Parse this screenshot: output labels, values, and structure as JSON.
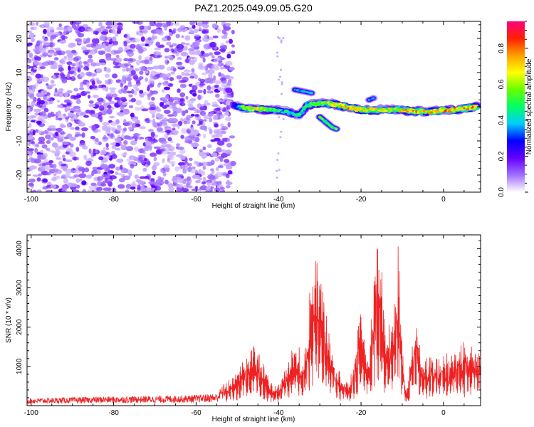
{
  "title": "PAZ1.2025.049.09.05.G20",
  "chart_data": [
    {
      "type": "heatmap",
      "name": "spectrogram",
      "xlabel": "Height of straight line (km)",
      "ylabel": "Frequency (Hz)",
      "xlim": [
        -101,
        9
      ],
      "ylim": [
        -25,
        25
      ],
      "xticks": [
        -100,
        -80,
        -60,
        -40,
        -20,
        0
      ],
      "yticks": [
        -20,
        -10,
        0,
        10,
        20
      ],
      "colorbar": {
        "label": "Normalized spectral amplitude",
        "range": [
          0,
          0.95
        ],
        "ticks": [
          "0.0",
          "0.2",
          "0.4",
          "0.6",
          "0.8"
        ],
        "colors": [
          "#ffffff",
          "#a070ff",
          "#6600ff",
          "#0000ff",
          "#00ccff",
          "#00ff66",
          "#66ff00",
          "#ffff00",
          "#ffa000",
          "#ff2000",
          "#ff0080"
        ]
      },
      "noise_region": {
        "x": [
          -101,
          -51
        ],
        "y": [
          -25,
          25
        ],
        "amplitude": [
          0.05,
          0.15
        ]
      },
      "signal_track": [
        {
          "x": -51,
          "y": 0.5,
          "a": 0.25
        },
        {
          "x": -48,
          "y": -0.5,
          "a": 0.65
        },
        {
          "x": -44,
          "y": -0.8,
          "a": 0.7
        },
        {
          "x": -41,
          "y": -1.0,
          "a": 0.55
        },
        {
          "x": -38,
          "y": -1.5,
          "a": 0.45
        },
        {
          "x": -35,
          "y": -2.5,
          "a": 0.5
        },
        {
          "x": -33,
          "y": 0.5,
          "a": 0.55
        },
        {
          "x": -30,
          "y": 1.0,
          "a": 0.6
        },
        {
          "x": -27,
          "y": 0.8,
          "a": 0.7
        },
        {
          "x": -24,
          "y": 0.0,
          "a": 0.75
        },
        {
          "x": -20,
          "y": -0.8,
          "a": 0.8
        },
        {
          "x": -16,
          "y": -1.0,
          "a": 0.7
        },
        {
          "x": -12,
          "y": -0.8,
          "a": 0.65
        },
        {
          "x": -8,
          "y": -1.2,
          "a": 0.8
        },
        {
          "x": -4,
          "y": -1.5,
          "a": 0.7
        },
        {
          "x": 0,
          "y": -1.0,
          "a": 0.8
        },
        {
          "x": 4,
          "y": -0.8,
          "a": 0.75
        },
        {
          "x": 8,
          "y": 0.0,
          "a": 0.85
        }
      ],
      "branches": [
        {
          "x": [
            -36,
            -34,
            -32
          ],
          "y": [
            5,
            4.5,
            4
          ],
          "a": 0.4
        },
        {
          "x": [
            -30,
            -29,
            -28,
            -27,
            -26
          ],
          "y": [
            -3,
            -4,
            -5,
            -6,
            -6.5
          ],
          "a": 0.55
        },
        {
          "x": [
            -18,
            -17
          ],
          "y": [
            2,
            2.5
          ],
          "a": 0.35
        }
      ]
    },
    {
      "type": "line",
      "name": "snr",
      "xlabel": "Height of straight line (km)",
      "ylabel": "SNR (10 * v/v)",
      "xlim": [
        -101,
        9
      ],
      "ylim": [
        0,
        4350
      ],
      "xticks": [
        -100,
        -80,
        -60,
        -40,
        -20,
        0
      ],
      "yticks": [
        1000,
        2000,
        3000,
        4000
      ],
      "color": "#ee2222",
      "envelope": [
        {
          "x": -101,
          "y": 150
        },
        {
          "x": -90,
          "y": 170
        },
        {
          "x": -80,
          "y": 190
        },
        {
          "x": -70,
          "y": 200
        },
        {
          "x": -60,
          "y": 220
        },
        {
          "x": -55,
          "y": 250
        },
        {
          "x": -52,
          "y": 600
        },
        {
          "x": -48,
          "y": 1100
        },
        {
          "x": -46,
          "y": 1600
        },
        {
          "x": -44,
          "y": 1000
        },
        {
          "x": -42,
          "y": 500
        },
        {
          "x": -40,
          "y": 450
        },
        {
          "x": -38,
          "y": 900
        },
        {
          "x": -36,
          "y": 1500
        },
        {
          "x": -34,
          "y": 1000
        },
        {
          "x": -33,
          "y": 2000
        },
        {
          "x": -32,
          "y": 3000
        },
        {
          "x": -31,
          "y": 3700
        },
        {
          "x": -30,
          "y": 3300
        },
        {
          "x": -29,
          "y": 2300
        },
        {
          "x": -27,
          "y": 1300
        },
        {
          "x": -25,
          "y": 700
        },
        {
          "x": -23,
          "y": 500
        },
        {
          "x": -21,
          "y": 1500
        },
        {
          "x": -20,
          "y": 2300
        },
        {
          "x": -19,
          "y": 1400
        },
        {
          "x": -18,
          "y": 1200
        },
        {
          "x": -17,
          "y": 2800
        },
        {
          "x": -16,
          "y": 4000
        },
        {
          "x": -15,
          "y": 3000
        },
        {
          "x": -14,
          "y": 1500
        },
        {
          "x": -12,
          "y": 2500
        },
        {
          "x": -11,
          "y": 3500
        },
        {
          "x": -10,
          "y": 1500
        },
        {
          "x": -9,
          "y": 300
        },
        {
          "x": -8,
          "y": 1200
        },
        {
          "x": -7,
          "y": 1900
        },
        {
          "x": -6,
          "y": 1700
        },
        {
          "x": -5,
          "y": 900
        },
        {
          "x": -3,
          "y": 1200
        },
        {
          "x": 0,
          "y": 1100
        },
        {
          "x": 3,
          "y": 1300
        },
        {
          "x": 6,
          "y": 1400
        },
        {
          "x": 9,
          "y": 1300
        }
      ]
    }
  ]
}
